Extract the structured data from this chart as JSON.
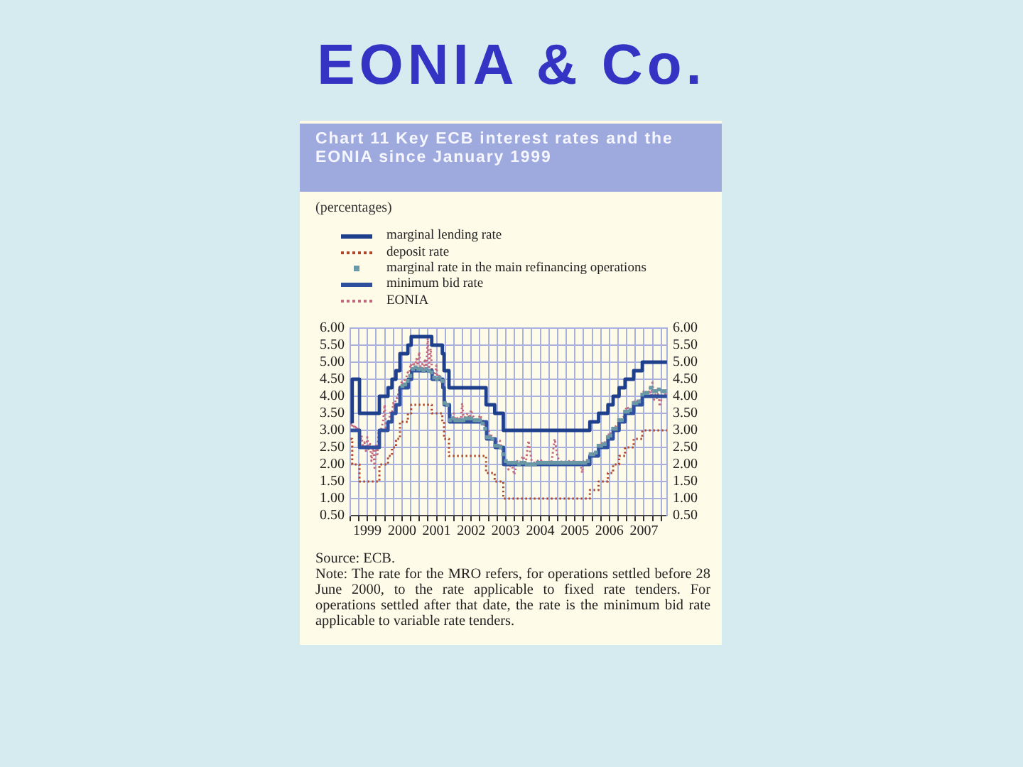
{
  "chart_data": {
    "type": "step",
    "title": "EONIA & Co.",
    "subtitle": "Chart 11 Key ECB interest rates and the EONIA since January 1999",
    "annotations": [
      "(percentages)",
      "Source: ECB.",
      "Note: The rate for the MRO refers, for operations settled before 28 June 2000, to the rate applicable to fixed rate tenders. For operations settled after that date, the rate is the minimum bid rate applicable to variable rate tenders."
    ],
    "xlim": [
      "1999-01-01",
      "2008-03-01"
    ],
    "xticks": [
      {
        "value": "1999-01-01",
        "label": null
      },
      {
        "value": "1999-04-01",
        "label": null
      },
      {
        "value": "1999-07-01",
        "label": "1999"
      },
      {
        "value": "1999-10-01",
        "label": null
      },
      {
        "value": "2000-01-01",
        "label": null
      },
      {
        "value": "2000-04-01",
        "label": null
      },
      {
        "value": "2000-07-01",
        "label": "2000"
      },
      {
        "value": "2000-10-01",
        "label": null
      },
      {
        "value": "2001-01-01",
        "label": null
      },
      {
        "value": "2001-04-01",
        "label": null
      },
      {
        "value": "2001-07-01",
        "label": "2001"
      },
      {
        "value": "2001-10-01",
        "label": null
      },
      {
        "value": "2002-01-01",
        "label": null
      },
      {
        "value": "2002-04-01",
        "label": null
      },
      {
        "value": "2002-07-01",
        "label": "2002"
      },
      {
        "value": "2002-10-01",
        "label": null
      },
      {
        "value": "2003-01-01",
        "label": null
      },
      {
        "value": "2003-04-01",
        "label": null
      },
      {
        "value": "2003-07-01",
        "label": "2003"
      },
      {
        "value": "2003-10-01",
        "label": null
      },
      {
        "value": "2004-01-01",
        "label": null
      },
      {
        "value": "2004-04-01",
        "label": null
      },
      {
        "value": "2004-07-01",
        "label": "2004"
      },
      {
        "value": "2004-10-01",
        "label": null
      },
      {
        "value": "2005-01-01",
        "label": null
      },
      {
        "value": "2005-04-01",
        "label": null
      },
      {
        "value": "2005-07-01",
        "label": "2005"
      },
      {
        "value": "2005-10-01",
        "label": null
      },
      {
        "value": "2006-01-01",
        "label": null
      },
      {
        "value": "2006-04-01",
        "label": null
      },
      {
        "value": "2006-07-01",
        "label": "2006"
      },
      {
        "value": "2006-10-01",
        "label": null
      },
      {
        "value": "2007-01-01",
        "label": null
      },
      {
        "value": "2007-04-01",
        "label": null
      },
      {
        "value": "2007-07-01",
        "label": "2007"
      },
      {
        "value": "2007-10-01",
        "label": null
      },
      {
        "value": "2008-01-01",
        "label": null
      }
    ],
    "ylim": [
      0.5,
      6
    ],
    "yticks": [
      {
        "value": 0.5,
        "label": "0.50"
      },
      {
        "value": 1,
        "label": "1.00"
      },
      {
        "value": 1.5,
        "label": "1.50"
      },
      {
        "value": 2,
        "label": "2.00"
      },
      {
        "value": 2.5,
        "label": "2.50"
      },
      {
        "value": 3,
        "label": "3.00"
      },
      {
        "value": 3.5,
        "label": "3.50"
      },
      {
        "value": 4,
        "label": "4.00"
      },
      {
        "value": 4.5,
        "label": "4.50"
      },
      {
        "value": 5,
        "label": "5.00"
      },
      {
        "value": 5.5,
        "label": "5.50"
      },
      {
        "value": 6,
        "label": "6.00"
      }
    ],
    "y2lim": [
      0.5,
      6
    ],
    "y2ticks": [
      {
        "value": 0.5,
        "label": "0.50"
      },
      {
        "value": 1,
        "label": "1.00"
      },
      {
        "value": 1.5,
        "label": "1.50"
      },
      {
        "value": 2,
        "label": "2.00"
      },
      {
        "value": 2.5,
        "label": "2.50"
      },
      {
        "value": 3,
        "label": "3.00"
      },
      {
        "value": 3.5,
        "label": "3.50"
      },
      {
        "value": 4,
        "label": "4.00"
      },
      {
        "value": 4.5,
        "label": "4.50"
      },
      {
        "value": 5,
        "label": "5.00"
      },
      {
        "value": 5.5,
        "label": "5.50"
      },
      {
        "value": 6,
        "label": "6.00"
      }
    ],
    "grid": true,
    "legend": "top",
    "series": [
      {
        "name": "marginal lending rate",
        "color": "#1e3f8c",
        "line_style": "solid",
        "marker": "none",
        "x": [
          "1999-01-04",
          "1999-01-22",
          "1999-04-09",
          "1999-11-05",
          "2000-02-04",
          "2000-03-17",
          "2000-04-28",
          "2000-06-09",
          "2000-09-01",
          "2000-10-06",
          "2001-05-11",
          "2001-08-31",
          "2001-09-18",
          "2001-11-09",
          "2002-12-06",
          "2003-03-07",
          "2003-06-06",
          "2005-12-06",
          "2006-03-08",
          "2006-06-15",
          "2006-08-09",
          "2006-10-11",
          "2006-12-13",
          "2007-03-14",
          "2007-06-13",
          "2008-02-29"
        ],
        "values": [
          3.25,
          4.5,
          3.5,
          4,
          4.25,
          4.5,
          4.75,
          5.25,
          5.5,
          5.75,
          5.5,
          5.25,
          4.75,
          4.25,
          3.75,
          3.5,
          3,
          3.25,
          3.5,
          3.75,
          4,
          4.25,
          4.5,
          4.75,
          5,
          5
        ]
      },
      {
        "name": "deposit rate",
        "color": "#b0442a",
        "line_style": "dotted",
        "marker": "none",
        "x": [
          "1999-01-04",
          "1999-01-22",
          "1999-04-09",
          "1999-11-05",
          "2000-02-04",
          "2000-03-17",
          "2000-04-28",
          "2000-06-09",
          "2000-09-01",
          "2000-10-06",
          "2001-05-11",
          "2001-08-31",
          "2001-09-18",
          "2001-11-09",
          "2002-12-06",
          "2003-03-07",
          "2003-06-06",
          "2005-12-06",
          "2006-03-08",
          "2006-06-15",
          "2006-08-09",
          "2006-10-11",
          "2006-12-13",
          "2007-03-14",
          "2007-06-13",
          "2008-02-29"
        ],
        "values": [
          2.75,
          2,
          1.5,
          2,
          2.25,
          2.5,
          2.75,
          3.25,
          3.5,
          3.75,
          3.5,
          3.25,
          2.75,
          2.25,
          1.75,
          1.5,
          1,
          1.25,
          1.5,
          1.75,
          2,
          2.25,
          2.5,
          2.75,
          3,
          3
        ]
      },
      {
        "name": "marginal rate in the main refinancing operations",
        "type": "scatter",
        "color": "#6b98a6",
        "marker": "square",
        "x": [
          "2000-07-05",
          "2000-08-02",
          "2000-08-30",
          "2000-09-27",
          "2000-10-25",
          "2000-11-22",
          "2000-12-20",
          "2001-01-17",
          "2001-02-14",
          "2001-03-14",
          "2001-04-11",
          "2001-05-09",
          "2001-06-06",
          "2001-07-04",
          "2001-08-01",
          "2001-08-29",
          "2001-09-26",
          "2001-10-24",
          "2001-11-21",
          "2001-12-19",
          "2002-01-16",
          "2002-02-13",
          "2002-03-13",
          "2002-04-10",
          "2002-05-08",
          "2002-06-05",
          "2002-07-03",
          "2002-08-07",
          "2002-09-04",
          "2002-10-02",
          "2002-10-30",
          "2002-11-27",
          "2002-12-18",
          "2003-01-15",
          "2003-02-12",
          "2003-03-12",
          "2003-04-09",
          "2003-05-07",
          "2003-06-04",
          "2003-07-02",
          "2003-07-30",
          "2003-08-27",
          "2003-09-24",
          "2003-10-22",
          "2003-11-19",
          "2003-12-17",
          "2004-01-14",
          "2004-02-11",
          "2004-03-10",
          "2004-04-07",
          "2004-05-05",
          "2004-06-02",
          "2004-06-30",
          "2004-07-28",
          "2004-08-25",
          "2004-09-22",
          "2004-10-20",
          "2004-11-17",
          "2004-12-15",
          "2005-01-12",
          "2005-02-09",
          "2005-03-09",
          "2005-04-06",
          "2005-05-04",
          "2005-06-01",
          "2005-06-29",
          "2005-07-27",
          "2005-08-24",
          "2005-09-21",
          "2005-10-19",
          "2005-11-16",
          "2005-12-14",
          "2006-01-11",
          "2006-02-08",
          "2006-03-08",
          "2006-04-05",
          "2006-05-10",
          "2006-06-14",
          "2006-07-12",
          "2006-08-09",
          "2006-09-06",
          "2006-10-11",
          "2006-11-08",
          "2006-12-13",
          "2007-01-10",
          "2007-02-07",
          "2007-03-14",
          "2007-04-11",
          "2007-05-09",
          "2007-06-13",
          "2007-07-11",
          "2007-08-08",
          "2007-09-12",
          "2007-10-10",
          "2007-11-07",
          "2007-12-05",
          "2008-01-09",
          "2008-02-06"
        ],
        "values": [
          4.3,
          4.35,
          4.45,
          4.6,
          4.8,
          4.85,
          4.8,
          4.8,
          4.75,
          4.8,
          4.75,
          4.7,
          4.55,
          4.5,
          4.55,
          4.45,
          3.8,
          3.75,
          3.3,
          3.35,
          3.3,
          3.3,
          3.3,
          3.3,
          3.35,
          3.35,
          3.35,
          3.3,
          3.3,
          3.3,
          3.2,
          3.05,
          2.8,
          2.8,
          2.75,
          2.55,
          2.55,
          2.5,
          2.3,
          2.1,
          2.05,
          2.05,
          2.05,
          2.05,
          2,
          2.05,
          2.05,
          2,
          2,
          2,
          2,
          2.05,
          2.05,
          2.05,
          2.05,
          2.05,
          2.05,
          2.05,
          2.05,
          2.05,
          2.05,
          2.05,
          2.05,
          2.05,
          2.05,
          2.05,
          2.05,
          2.05,
          2.05,
          2.05,
          2.1,
          2.3,
          2.3,
          2.35,
          2.55,
          2.55,
          2.6,
          2.8,
          2.85,
          3.05,
          3.05,
          3.3,
          3.3,
          3.55,
          3.55,
          3.6,
          3.8,
          3.8,
          3.85,
          4.05,
          4.1,
          4.1,
          4.25,
          4.15,
          4.15,
          4.2,
          4.15,
          4.15
        ]
      },
      {
        "name": "minimum bid rate",
        "color": "#2d4f9e",
        "line_style": "solid",
        "marker": "none",
        "x": [
          "1999-01-04",
          "1999-04-09",
          "1999-11-05",
          "2000-02-04",
          "2000-03-17",
          "2000-04-28",
          "2000-06-09",
          "2000-09-06",
          "2000-10-11",
          "2001-05-15",
          "2001-09-05",
          "2001-09-19",
          "2001-11-14",
          "2002-12-11",
          "2003-03-12",
          "2003-06-09",
          "2005-12-06",
          "2006-03-08",
          "2006-06-15",
          "2006-08-09",
          "2006-10-11",
          "2006-12-13",
          "2007-03-14",
          "2007-06-13",
          "2008-02-29"
        ],
        "values": [
          3,
          2.5,
          3,
          3.25,
          3.5,
          3.75,
          4.25,
          4.5,
          4.75,
          4.5,
          4.25,
          3.75,
          3.25,
          2.75,
          2.5,
          2,
          2.25,
          2.5,
          2.75,
          3,
          3.25,
          3.5,
          3.75,
          4,
          4
        ]
      },
      {
        "name": "EONIA",
        "type": "line",
        "color": "#c46a80",
        "line_style": "dotted",
        "marker": "none",
        "x": [
          "1999-01-04",
          "1999-01-20",
          "1999-01-29",
          "1999-02-15",
          "1999-02-26",
          "1999-03-15",
          "1999-03-31",
          "1999-04-12",
          "1999-04-30",
          "1999-05-14",
          "1999-05-31",
          "1999-06-15",
          "1999-06-30",
          "1999-07-15",
          "1999-07-30",
          "1999-08-13",
          "1999-08-31",
          "1999-09-15",
          "1999-09-30",
          "1999-10-15",
          "1999-10-29",
          "1999-11-15",
          "1999-11-30",
          "1999-12-15",
          "1999-12-31",
          "2000-01-14",
          "2000-01-31",
          "2000-02-15",
          "2000-02-29",
          "2000-03-15",
          "2000-03-31",
          "2000-04-14",
          "2000-04-28",
          "2000-05-15",
          "2000-05-31",
          "2000-06-15",
          "2000-06-30",
          "2000-07-14",
          "2000-07-31",
          "2000-08-15",
          "2000-08-31",
          "2000-09-15",
          "2000-09-29",
          "2000-10-13",
          "2000-10-31",
          "2000-11-15",
          "2000-11-30",
          "2000-12-15",
          "2000-12-29",
          "2001-01-15",
          "2001-01-31",
          "2001-02-15",
          "2001-02-28",
          "2001-03-15",
          "2001-03-30",
          "2001-04-13",
          "2001-04-30",
          "2001-05-15",
          "2001-05-31",
          "2001-06-15",
          "2001-06-29",
          "2001-07-13",
          "2001-07-31",
          "2001-08-15",
          "2001-08-31",
          "2001-09-14",
          "2001-09-28",
          "2001-10-15",
          "2001-10-31",
          "2001-11-15",
          "2001-11-30",
          "2001-12-14",
          "2001-12-31",
          "2002-01-15",
          "2002-01-31",
          "2002-02-28",
          "2002-03-15",
          "2002-03-28",
          "2002-04-15",
          "2002-04-30",
          "2002-05-31",
          "2002-06-14",
          "2002-06-28",
          "2002-07-31",
          "2002-08-30",
          "2002-09-13",
          "2002-09-30",
          "2002-10-31",
          "2002-11-15",
          "2002-11-29",
          "2002-12-13",
          "2002-12-31",
          "2003-01-15",
          "2003-01-31",
          "2003-02-28",
          "2003-03-14",
          "2003-03-31",
          "2003-04-30",
          "2003-05-15",
          "2003-05-30",
          "2003-06-13",
          "2003-06-30",
          "2003-07-31",
          "2003-08-29",
          "2003-09-30",
          "2003-10-31",
          "2003-11-28",
          "2003-12-31",
          "2004-01-30",
          "2004-02-27",
          "2004-03-31",
          "2004-04-30",
          "2004-05-31",
          "2004-06-30",
          "2004-07-30",
          "2004-08-31",
          "2004-09-30",
          "2004-10-29",
          "2004-11-30",
          "2004-12-31",
          "2005-01-31",
          "2005-02-28",
          "2005-03-31",
          "2005-04-29",
          "2005-05-31",
          "2005-06-30",
          "2005-07-29",
          "2005-08-31",
          "2005-09-15",
          "2005-09-30",
          "2005-10-31",
          "2005-11-30",
          "2005-12-15",
          "2006-01-31",
          "2006-02-28",
          "2006-03-15",
          "2006-03-31",
          "2006-04-28",
          "2006-05-31",
          "2006-06-15",
          "2006-06-30",
          "2006-07-31",
          "2006-08-15",
          "2006-08-31",
          "2006-09-29",
          "2006-10-13",
          "2006-10-31",
          "2006-11-30",
          "2006-12-15",
          "2006-12-29",
          "2007-01-31",
          "2007-02-28",
          "2007-03-15",
          "2007-03-30",
          "2007-04-30",
          "2007-05-31",
          "2007-06-15",
          "2007-06-29",
          "2007-07-31",
          "2007-08-15",
          "2007-08-31",
          "2007-09-14",
          "2007-09-28",
          "2007-10-15",
          "2007-10-31",
          "2007-11-15",
          "2007-11-30",
          "2007-12-14",
          "2007-12-31",
          "2008-01-15",
          "2008-01-31",
          "2008-02-15",
          "2008-02-29"
        ],
        "values": [
          3.2,
          3.1,
          3.25,
          3.05,
          3.15,
          3,
          3.1,
          2.65,
          2.85,
          2.5,
          2.65,
          2.4,
          2.8,
          2.45,
          2.6,
          2.1,
          2.55,
          1.9,
          2.6,
          2.3,
          3,
          2.95,
          3.1,
          3.3,
          3.75,
          3,
          3.2,
          3.3,
          3.55,
          3.45,
          3.8,
          3.7,
          3.95,
          3.95,
          4.2,
          4.3,
          4.45,
          4.3,
          4.5,
          4.55,
          4.7,
          4.6,
          4.95,
          4.8,
          5,
          4.85,
          5.1,
          4.9,
          5.3,
          4.8,
          4.95,
          4.8,
          5.1,
          4.8,
          5.7,
          4.8,
          5.4,
          4.65,
          4.7,
          4.55,
          4.9,
          4.5,
          4.6,
          4.45,
          4.4,
          4.2,
          3.9,
          3.7,
          3.75,
          3.35,
          3.45,
          3.3,
          3.5,
          3.25,
          3.35,
          3.4,
          3.25,
          3.8,
          3.3,
          3.45,
          3.5,
          3.3,
          3.6,
          3.35,
          3.3,
          3.25,
          3.45,
          3.3,
          3.2,
          3.05,
          2.9,
          3.05,
          2.8,
          2.85,
          2.8,
          2.6,
          2.7,
          2.7,
          2.5,
          2.4,
          2.15,
          2.1,
          1.85,
          2.05,
          1.7,
          2.1,
          2.05,
          2.25,
          2.05,
          2.7,
          2.1,
          2.05,
          2.1,
          2.15,
          2.05,
          2.1,
          2.05,
          2.1,
          2.75,
          2.2,
          2.1,
          2.05,
          2.1,
          2.1,
          2.1,
          2.1,
          2.05,
          2.05,
          1.75,
          2.1,
          2.1,
          2.2,
          2.3,
          2.35,
          2.4,
          2.55,
          2.65,
          2.6,
          2.7,
          2.8,
          2.95,
          2.85,
          3.05,
          3.1,
          3.2,
          3.3,
          3.35,
          3.4,
          3.55,
          3.7,
          3.6,
          3.65,
          3.8,
          3.9,
          3.85,
          3.9,
          4.05,
          4.15,
          4.1,
          4,
          4.25,
          3.95,
          4.4,
          3.9,
          4.05,
          3.95,
          4.1,
          3.7,
          3.9,
          4.1,
          4.15,
          4.05,
          4.05
        ]
      }
    ]
  }
}
